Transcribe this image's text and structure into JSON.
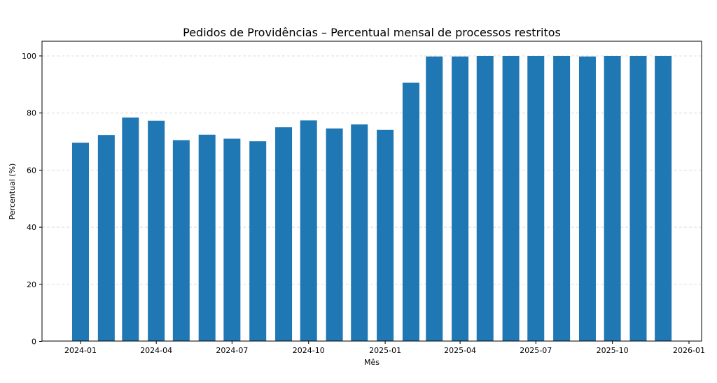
{
  "chart_data": {
    "type": "bar",
    "title": "Pedidos de Providências – Percentual mensal de processos restritos",
    "xlabel": "Mês",
    "ylabel": "Percentual (%)",
    "ylim": [
      0,
      105
    ],
    "yticks": [
      0,
      20,
      40,
      60,
      80,
      100
    ],
    "xticks": [
      "2024-01",
      "2024-04",
      "2024-07",
      "2024-10",
      "2025-01",
      "2025-04",
      "2025-07",
      "2025-10",
      "2026-01"
    ],
    "grid": "y, dashed",
    "color": "#1f77b4",
    "categories": [
      "2024-01",
      "2024-02",
      "2024-03",
      "2024-04",
      "2024-05",
      "2024-06",
      "2024-07",
      "2024-08",
      "2024-09",
      "2024-10",
      "2024-11",
      "2024-12",
      "2025-01",
      "2025-02",
      "2025-03",
      "2025-04",
      "2025-05",
      "2025-06",
      "2025-07",
      "2025-08",
      "2025-09",
      "2025-10",
      "2025-11",
      "2025-12"
    ],
    "values": [
      69.6,
      72.3,
      78.4,
      77.3,
      70.5,
      72.4,
      71.0,
      70.1,
      75.0,
      77.4,
      74.6,
      76.0,
      74.1,
      90.6,
      99.8,
      99.8,
      100,
      100,
      100,
      100,
      99.8,
      100,
      100,
      100
    ]
  }
}
